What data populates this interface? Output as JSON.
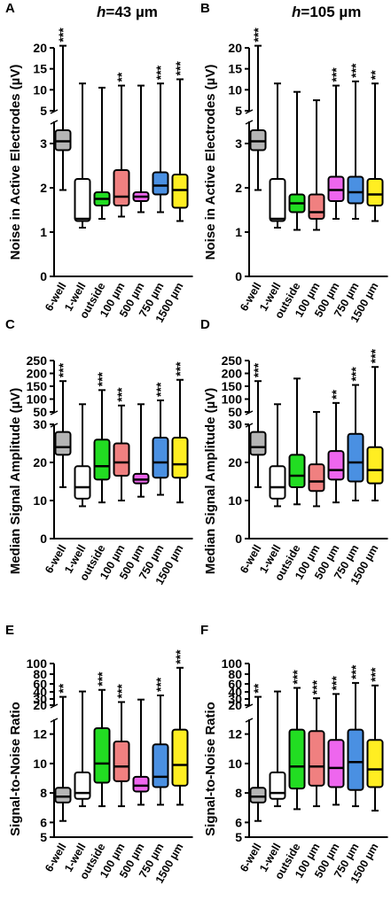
{
  "figure": {
    "panel_titles": {
      "A": "h=43 µm",
      "B": "h=105 µm"
    },
    "row_ylabels": [
      "Noise in Active Electrodes (µV)",
      "Median Signal Amplitude (µV)",
      "Signal-to-Noise Ratio"
    ]
  },
  "chart_data": [
    {
      "panel": "A",
      "type": "box",
      "title": "h=43 µm",
      "title_italic_part": "h",
      "title_rest": "=43 µm",
      "ylabel": "Noise in Active Electrodes (µV)",
      "categories": [
        "6-well",
        "1-well",
        "outside",
        "100 µm",
        "500 µm",
        "750 µm",
        "1500 µm"
      ],
      "colors": [
        "#b5b5b5",
        "#ffffff",
        "#22dd22",
        "#f08080",
        "#ee66ee",
        "#4a90e2",
        "#ffee22"
      ],
      "axis_break": {
        "lower_range": [
          0,
          3.5
        ],
        "lower_ticks": [
          "0",
          "1",
          "2",
          "3"
        ],
        "upper_range": [
          5,
          20
        ],
        "upper_ticks": [
          "5",
          "10",
          "15",
          "20"
        ]
      },
      "boxes": [
        {
          "min": 1.95,
          "q1": 2.85,
          "median": 3.05,
          "q3": 3.3,
          "max": 20.5
        },
        {
          "min": 1.1,
          "q1": 1.25,
          "median": 1.3,
          "q3": 2.2,
          "max": 11.5
        },
        {
          "min": 1.3,
          "q1": 1.6,
          "median": 1.75,
          "q3": 1.9,
          "max": 10.5
        },
        {
          "min": 1.35,
          "q1": 1.6,
          "median": 1.8,
          "q3": 2.4,
          "max": 11
        },
        {
          "min": 1.45,
          "q1": 1.7,
          "median": 1.8,
          "q3": 1.9,
          "max": 11
        },
        {
          "min": 1.45,
          "q1": 1.85,
          "median": 2.05,
          "q3": 2.35,
          "max": 11.5
        },
        {
          "min": 1.25,
          "q1": 1.55,
          "median": 1.95,
          "q3": 2.3,
          "max": 12.5
        }
      ],
      "significance": [
        "***",
        "",
        "",
        "**",
        "",
        "***",
        "***"
      ]
    },
    {
      "panel": "B",
      "type": "box",
      "title": "h=105 µm",
      "title_italic_part": "h",
      "title_rest": "=105 µm",
      "ylabel": "Noise in Active Electrodes (µV)",
      "categories": [
        "6-well",
        "1-well",
        "outside",
        "100 µm",
        "500 µm",
        "750 µm",
        "1500 µm"
      ],
      "colors": [
        "#b5b5b5",
        "#ffffff",
        "#22dd22",
        "#f08080",
        "#ee66ee",
        "#4a90e2",
        "#ffee22"
      ],
      "axis_break": {
        "lower_range": [
          0,
          3.5
        ],
        "lower_ticks": [
          "0",
          "1",
          "2",
          "3"
        ],
        "upper_range": [
          5,
          20
        ],
        "upper_ticks": [
          "5",
          "10",
          "15",
          "20"
        ]
      },
      "boxes": [
        {
          "min": 1.95,
          "q1": 2.85,
          "median": 3.05,
          "q3": 3.3,
          "max": 20.5
        },
        {
          "min": 1.1,
          "q1": 1.25,
          "median": 1.3,
          "q3": 2.2,
          "max": 11.5
        },
        {
          "min": 1.05,
          "q1": 1.45,
          "median": 1.65,
          "q3": 1.85,
          "max": 9.5
        },
        {
          "min": 1.05,
          "q1": 1.3,
          "median": 1.45,
          "q3": 1.85,
          "max": 7.5
        },
        {
          "min": 1.3,
          "q1": 1.7,
          "median": 1.95,
          "q3": 2.25,
          "max": 11
        },
        {
          "min": 1.3,
          "q1": 1.65,
          "median": 1.9,
          "q3": 2.25,
          "max": 12
        },
        {
          "min": 1.25,
          "q1": 1.6,
          "median": 1.85,
          "q3": 2.2,
          "max": 11.5
        }
      ],
      "significance": [
        "***",
        "",
        "",
        "",
        "***",
        "***",
        "**"
      ]
    },
    {
      "panel": "C",
      "type": "box",
      "ylabel": "Median Signal Amplitude (µV)",
      "categories": [
        "6-well",
        "1-well",
        "outside",
        "100 µm",
        "500 µm",
        "750 µm",
        "1500 µm"
      ],
      "colors": [
        "#b5b5b5",
        "#ffffff",
        "#22dd22",
        "#f08080",
        "#ee66ee",
        "#4a90e2",
        "#ffee22"
      ],
      "axis_break": {
        "lower_range": [
          0,
          30
        ],
        "lower_ticks": [
          "0",
          "10",
          "20",
          "30"
        ],
        "upper_range": [
          50,
          250
        ],
        "upper_ticks": [
          "50",
          "100",
          "150",
          "200",
          "250"
        ]
      },
      "boxes": [
        {
          "min": 13.5,
          "q1": 22,
          "median": 24,
          "q3": 28,
          "max": 170
        },
        {
          "min": 8.5,
          "q1": 10.5,
          "median": 13.5,
          "q3": 19,
          "max": 80
        },
        {
          "min": 9.5,
          "q1": 15.5,
          "median": 19,
          "q3": 26,
          "max": 135
        },
        {
          "min": 10,
          "q1": 16.5,
          "median": 20,
          "q3": 25,
          "max": 75
        },
        {
          "min": 11,
          "q1": 14.5,
          "median": 15.5,
          "q3": 17,
          "max": 80
        },
        {
          "min": 11.5,
          "q1": 16,
          "median": 20,
          "q3": 26.5,
          "max": 95
        },
        {
          "min": 9.5,
          "q1": 16,
          "median": 19.5,
          "q3": 26.5,
          "max": 175
        }
      ],
      "significance": [
        "***",
        "",
        "***",
        "***",
        "",
        "***",
        "***"
      ]
    },
    {
      "panel": "D",
      "type": "box",
      "ylabel": "Median Signal Amplitude (µV)",
      "categories": [
        "6-well",
        "1-well",
        "outside",
        "100 µm",
        "500 µm",
        "750 µm",
        "1500 µm"
      ],
      "colors": [
        "#b5b5b5",
        "#ffffff",
        "#22dd22",
        "#f08080",
        "#ee66ee",
        "#4a90e2",
        "#ffee22"
      ],
      "axis_break": {
        "lower_range": [
          0,
          30
        ],
        "lower_ticks": [
          "0",
          "10",
          "20",
          "30"
        ],
        "upper_range": [
          50,
          250
        ],
        "upper_ticks": [
          "50",
          "100",
          "150",
          "200",
          "250"
        ]
      },
      "boxes": [
        {
          "min": 13.5,
          "q1": 22,
          "median": 24,
          "q3": 28,
          "max": 170
        },
        {
          "min": 8.5,
          "q1": 10.5,
          "median": 13.5,
          "q3": 19,
          "max": 80
        },
        {
          "min": 9,
          "q1": 13.5,
          "median": 16.5,
          "q3": 22,
          "max": 180
        },
        {
          "min": 8.5,
          "q1": 12.5,
          "median": 15,
          "q3": 19.5,
          "max": 50
        },
        {
          "min": 9.5,
          "q1": 15.5,
          "median": 18,
          "q3": 23,
          "max": 85
        },
        {
          "min": 10,
          "q1": 15,
          "median": 20,
          "q3": 27.5,
          "max": 155
        },
        {
          "min": 10,
          "q1": 14.5,
          "median": 18,
          "q3": 24,
          "max": 225
        }
      ],
      "significance": [
        "***",
        "",
        "",
        "",
        "**",
        "***",
        "***"
      ]
    },
    {
      "panel": "E",
      "type": "box",
      "ylabel": "Signal-to-Noise Ratio",
      "categories": [
        "6-well",
        "1-well",
        "outside",
        "100 µm",
        "500 µm",
        "750 µm",
        "1500 µm"
      ],
      "colors": [
        "#b5b5b5",
        "#ffffff",
        "#22dd22",
        "#f08080",
        "#ee66ee",
        "#4a90e2",
        "#ffee22"
      ],
      "axis_break": {
        "lower_range": [
          5,
          13
        ],
        "lower_ticks": [
          "5",
          "6",
          "8",
          "10",
          "12"
        ],
        "upper_range": [
          20,
          100
        ],
        "upper_ticks": [
          "20",
          "30",
          "40",
          "60",
          "80",
          "100"
        ]
      },
      "boxes": [
        {
          "min": 6.1,
          "q1": 7.35,
          "median": 7.75,
          "q3": 8.35,
          "max": 33
        },
        {
          "min": 7.1,
          "q1": 7.6,
          "median": 8,
          "q3": 9.4,
          "max": 41
        },
        {
          "min": 7.1,
          "q1": 8.7,
          "median": 10,
          "q3": 12.4,
          "max": 45
        },
        {
          "min": 7.1,
          "q1": 8.8,
          "median": 9.8,
          "q3": 11.5,
          "max": 25
        },
        {
          "min": 7.2,
          "q1": 8.1,
          "median": 8.5,
          "q3": 9.1,
          "max": 29
        },
        {
          "min": 7.2,
          "q1": 8.4,
          "median": 9.1,
          "q3": 11.3,
          "max": 35
        },
        {
          "min": 7.2,
          "q1": 8.5,
          "median": 9.9,
          "q3": 12.3,
          "max": 92
        }
      ],
      "significance": [
        "**",
        "",
        "***",
        "***",
        "",
        "***",
        "***"
      ]
    },
    {
      "panel": "F",
      "type": "box",
      "ylabel": "Signal-to-Noise Ratio",
      "categories": [
        "6-well",
        "1-well",
        "outside",
        "100 µm",
        "500 µm",
        "750 µm",
        "1500 µm"
      ],
      "colors": [
        "#b5b5b5",
        "#ffffff",
        "#22dd22",
        "#f08080",
        "#ee66ee",
        "#4a90e2",
        "#ffee22"
      ],
      "axis_break": {
        "lower_range": [
          5,
          13
        ],
        "lower_ticks": [
          "5",
          "6",
          "8",
          "10",
          "12"
        ],
        "upper_range": [
          20,
          100
        ],
        "upper_ticks": [
          "20",
          "30",
          "40",
          "60",
          "80",
          "100"
        ]
      },
      "boxes": [
        {
          "min": 6.1,
          "q1": 7.35,
          "median": 7.75,
          "q3": 8.35,
          "max": 33
        },
        {
          "min": 7.1,
          "q1": 7.6,
          "median": 8,
          "q3": 9.4,
          "max": 41
        },
        {
          "min": 6.9,
          "q1": 8.3,
          "median": 9.8,
          "q3": 12.3,
          "max": 50
        },
        {
          "min": 7.1,
          "q1": 8.5,
          "median": 9.8,
          "q3": 12.2,
          "max": 31
        },
        {
          "min": 7.2,
          "q1": 8.4,
          "median": 9.7,
          "q3": 11.6,
          "max": 37
        },
        {
          "min": 7.1,
          "q1": 8.2,
          "median": 10.1,
          "q3": 12.3,
          "max": 62
        },
        {
          "min": 6.8,
          "q1": 8.4,
          "median": 9.6,
          "q3": 11.6,
          "max": 56
        }
      ],
      "significance": [
        "**",
        "",
        "***",
        "***",
        "***",
        "***",
        "***"
      ]
    }
  ]
}
